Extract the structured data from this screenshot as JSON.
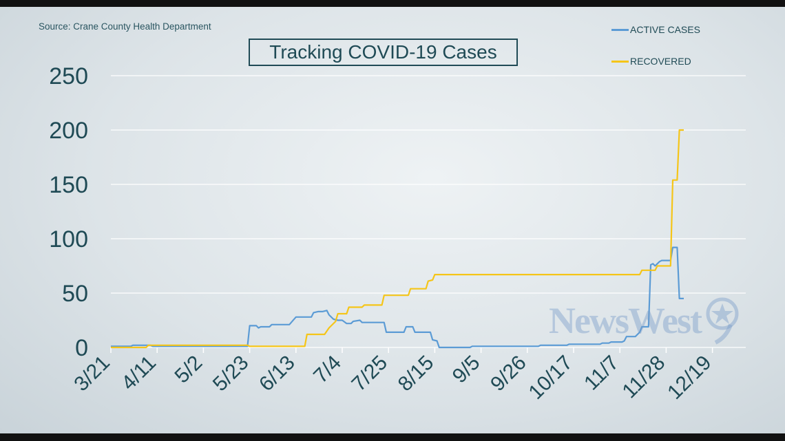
{
  "source": "Source: Crane County Health Department",
  "title": "Tracking COVID-19 Cases",
  "watermark": "NewsWest",
  "colors": {
    "active": "#5b9bd5",
    "recovered": "#f5c518",
    "text": "#1f4a55",
    "grid": "#ffffff"
  },
  "chart_data": {
    "type": "line",
    "title": "Tracking COVID-19 Cases",
    "xlabel": "",
    "ylabel": "",
    "ylim": [
      0,
      250
    ],
    "yticks": [
      "0",
      "50",
      "100",
      "150",
      "200",
      "250"
    ],
    "xtick_labels": [
      "3/21",
      "4/11",
      "5/2",
      "5/23",
      "6/13",
      "7/4",
      "7/25",
      "8/15",
      "9/5",
      "9/26",
      "10/17",
      "11/7",
      "11/28",
      "12/19"
    ],
    "grid": "horizontal",
    "legend": "top-right",
    "series": [
      {
        "name": "ACTIVE CASES",
        "color": "#5b9bd5",
        "points": [
          [
            "3/21",
            1
          ],
          [
            "3/30",
            1
          ],
          [
            "3/31",
            2
          ],
          [
            "4/8",
            2
          ],
          [
            "4/9",
            1
          ],
          [
            "5/22",
            1
          ],
          [
            "5/23",
            20
          ],
          [
            "5/26",
            20
          ],
          [
            "5/27",
            18
          ],
          [
            "5/28",
            19
          ],
          [
            "6/1",
            19
          ],
          [
            "6/2",
            21
          ],
          [
            "6/10",
            21
          ],
          [
            "6/13",
            28
          ],
          [
            "6/20",
            28
          ],
          [
            "6/21",
            32
          ],
          [
            "6/23",
            33
          ],
          [
            "6/25",
            33
          ],
          [
            "6/27",
            34
          ],
          [
            "6/28",
            30
          ],
          [
            "6/30",
            26
          ],
          [
            "7/2",
            25
          ],
          [
            "7/4",
            25
          ],
          [
            "7/6",
            22
          ],
          [
            "7/8",
            22
          ],
          [
            "7/9",
            24
          ],
          [
            "7/12",
            25
          ],
          [
            "7/13",
            23
          ],
          [
            "7/23",
            23
          ],
          [
            "7/24",
            14
          ],
          [
            "8/1",
            14
          ],
          [
            "8/2",
            19
          ],
          [
            "8/5",
            19
          ],
          [
            "8/6",
            14
          ],
          [
            "8/13",
            14
          ],
          [
            "8/14",
            7
          ],
          [
            "8/16",
            6
          ],
          [
            "8/17",
            0
          ],
          [
            "8/31",
            0
          ],
          [
            "9/1",
            1
          ],
          [
            "10/1",
            1
          ],
          [
            "10/2",
            2
          ],
          [
            "10/14",
            2
          ],
          [
            "10/15",
            3
          ],
          [
            "10/29",
            3
          ],
          [
            "10/30",
            4
          ],
          [
            "11/2",
            4
          ],
          [
            "11/3",
            5
          ],
          [
            "11/8",
            5
          ],
          [
            "11/9",
            6
          ],
          [
            "11/10",
            10
          ],
          [
            "11/14",
            10
          ],
          [
            "11/16",
            14
          ],
          [
            "11/17",
            19
          ],
          [
            "11/20",
            19
          ],
          [
            "11/21",
            76
          ],
          [
            "11/22",
            77
          ],
          [
            "11/23",
            75
          ],
          [
            "11/24",
            77
          ],
          [
            "11/25",
            79
          ],
          [
            "11/26",
            80
          ],
          [
            "11/30",
            80
          ],
          [
            "12/1",
            92
          ],
          [
            "12/3",
            92
          ],
          [
            "12/4",
            45
          ],
          [
            "12/6",
            45
          ]
        ]
      },
      {
        "name": "RECOVERED",
        "color": "#f5c518",
        "points": [
          [
            "3/21",
            0
          ],
          [
            "4/6",
            0
          ],
          [
            "4/7",
            2
          ],
          [
            "5/22",
            2
          ],
          [
            "5/23",
            1
          ],
          [
            "6/17",
            1
          ],
          [
            "6/18",
            12
          ],
          [
            "6/26",
            12
          ],
          [
            "6/27",
            15
          ],
          [
            "6/28",
            18
          ],
          [
            "7/1",
            24
          ],
          [
            "7/2",
            31
          ],
          [
            "7/6",
            31
          ],
          [
            "7/7",
            37
          ],
          [
            "7/13",
            37
          ],
          [
            "7/14",
            39
          ],
          [
            "7/22",
            39
          ],
          [
            "7/23",
            48
          ],
          [
            "8/3",
            48
          ],
          [
            "8/4",
            54
          ],
          [
            "8/11",
            54
          ],
          [
            "8/12",
            61
          ],
          [
            "8/14",
            62
          ],
          [
            "8/15",
            67
          ],
          [
            "11/16",
            67
          ],
          [
            "11/17",
            71
          ],
          [
            "11/23",
            71
          ],
          [
            "11/24",
            75
          ],
          [
            "11/30",
            75
          ],
          [
            "12/1",
            154
          ],
          [
            "12/3",
            154
          ],
          [
            "12/4",
            200
          ],
          [
            "12/6",
            200
          ]
        ]
      }
    ]
  }
}
